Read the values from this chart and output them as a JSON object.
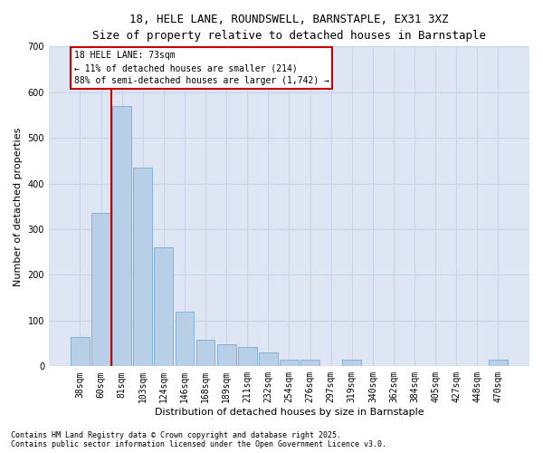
{
  "title_line1": "18, HELE LANE, ROUNDSWELL, BARNSTAPLE, EX31 3XZ",
  "title_line2": "Size of property relative to detached houses in Barnstaple",
  "xlabel": "Distribution of detached houses by size in Barnstaple",
  "ylabel": "Number of detached properties",
  "footnote": "Contains HM Land Registry data © Crown copyright and database right 2025.\nContains public sector information licensed under the Open Government Licence v3.0.",
  "categories": [
    "38sqm",
    "60sqm",
    "81sqm",
    "103sqm",
    "124sqm",
    "146sqm",
    "168sqm",
    "189sqm",
    "211sqm",
    "232sqm",
    "254sqm",
    "276sqm",
    "297sqm",
    "319sqm",
    "340sqm",
    "362sqm",
    "384sqm",
    "405sqm",
    "427sqm",
    "448sqm",
    "470sqm"
  ],
  "values": [
    65,
    335,
    570,
    435,
    260,
    120,
    58,
    48,
    42,
    30,
    14,
    14,
    0,
    14,
    0,
    0,
    0,
    0,
    0,
    0,
    14
  ],
  "bar_color": "#b8cfe8",
  "bar_edge_color": "#7aabd0",
  "grid_color": "#c8d4e8",
  "background_color": "#dde6f2",
  "vline_color": "#cc0000",
  "vline_position": 1.5,
  "annotation_text": "18 HELE LANE: 73sqm\n← 11% of detached houses are smaller (214)\n88% of semi-detached houses are larger (1,742) →",
  "annotation_box_edgecolor": "#cc0000",
  "ylim": [
    0,
    700
  ],
  "yticks": [
    0,
    100,
    200,
    300,
    400,
    500,
    600,
    700
  ],
  "title1_fontsize": 9,
  "title2_fontsize": 8,
  "tick_fontsize": 7,
  "ylabel_fontsize": 8,
  "xlabel_fontsize": 8,
  "annotation_fontsize": 7,
  "footnote_fontsize": 6
}
